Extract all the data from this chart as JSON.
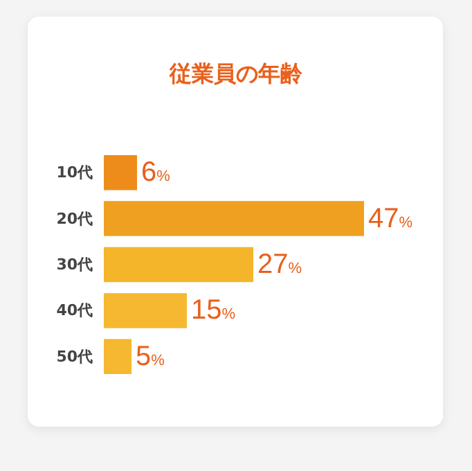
{
  "chart_data": {
    "type": "bar",
    "orientation": "horizontal",
    "title": "従業員の年齢",
    "categories": [
      "10代",
      "20代",
      "30代",
      "40代",
      "50代"
    ],
    "values": [
      6,
      47,
      27,
      15,
      5
    ],
    "colors": [
      "#ee8c1b",
      "#f0a020",
      "#f4b52b",
      "#f5b830",
      "#f5b830"
    ],
    "value_labels": [
      "6%",
      "47%",
      "27%",
      "15%",
      "5%"
    ]
  }
}
